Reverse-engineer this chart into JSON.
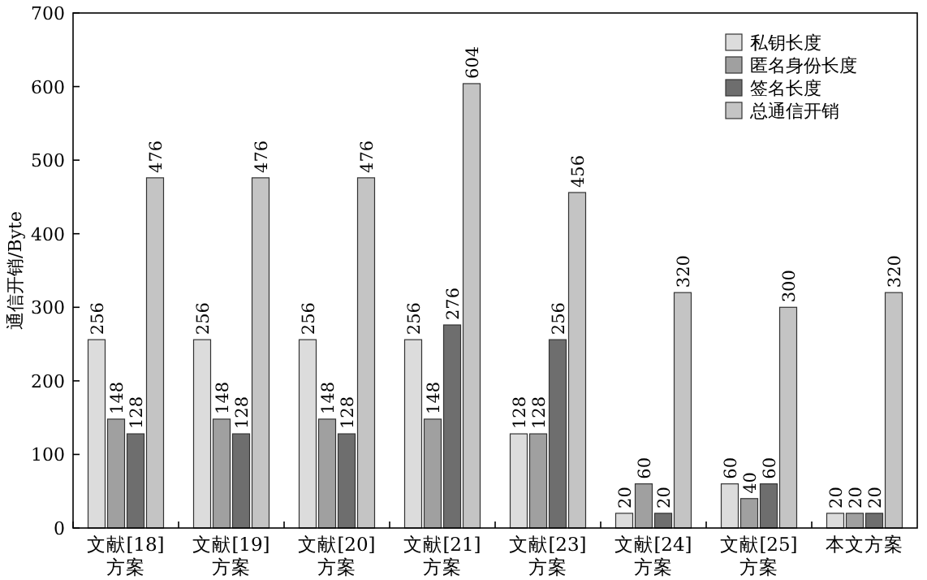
{
  "chart_data": {
    "type": "bar",
    "ylabel": "通信开销/Byte",
    "categories": [
      "文献[18]方案",
      "文献[19]方案",
      "文献[20]方案",
      "文献[21]方案",
      "文献[23]方案",
      "文献[24]方案",
      "文献[25]方案",
      "本文方案"
    ],
    "series": [
      {
        "name": "私钥长度",
        "color": "#dcdcdc",
        "values": [
          256,
          256,
          256,
          256,
          128,
          20,
          60,
          20
        ]
      },
      {
        "name": "匿名身份长度",
        "color": "#a0a0a0",
        "values": [
          148,
          148,
          148,
          148,
          128,
          60,
          40,
          20
        ]
      },
      {
        "name": "签名长度",
        "color": "#6e6e6e",
        "values": [
          128,
          128,
          128,
          276,
          256,
          20,
          60,
          20
        ]
      },
      {
        "name": "总通信开销",
        "color": "#c4c4c4",
        "values": [
          476,
          476,
          476,
          604,
          456,
          320,
          300,
          320
        ]
      }
    ],
    "ylim": [
      0,
      700
    ],
    "yticks": [
      0,
      100,
      200,
      300,
      400,
      500,
      600,
      700
    ],
    "data_labels": true,
    "legend": "top right",
    "grid": false
  }
}
